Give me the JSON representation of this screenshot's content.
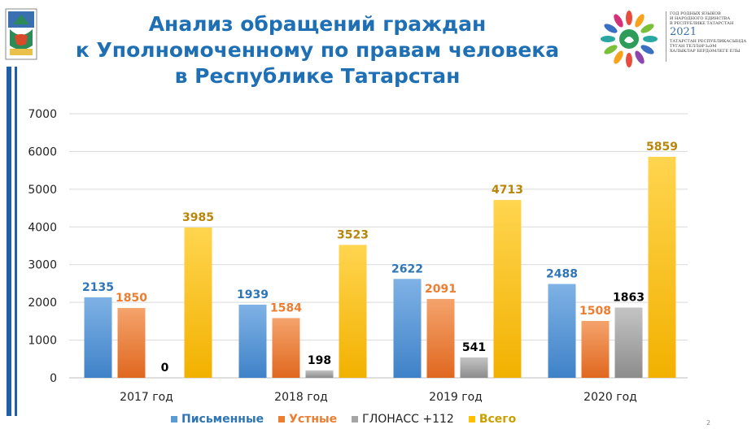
{
  "slide": {
    "title_lines": [
      "Анализ обращений граждан",
      "к Уполномоченному по правам человека",
      "в Республике Татарстан"
    ],
    "page_number": "2",
    "logo_lines": [
      "ГОД РОДНЫХ ЯЗЫКОВ",
      "И НАРОДНОГО ЕДИНСТВА",
      "В РЕСПУБЛИКЕ ТАТАРСТАН",
      "2021",
      "ТАТАРСТАН РЕСПУБЛИКАСЫНДА",
      "ТУГАН ТЕЛЛӘР ҺӘМ",
      "ХАЛЫКЛАР БЕРДӘМЛЕГЕ ЕЛЫ"
    ]
  },
  "chart_data": {
    "type": "bar",
    "title": "Анализ обращений граждан к Уполномоченному по правам человека в Республике Татарстан",
    "categories": [
      "2017 год",
      "2018 год",
      "2019 год",
      "2020 год"
    ],
    "series": [
      {
        "name": "Письменные",
        "color": "#5b9bd5",
        "label_color": "#2e75b6",
        "values": [
          2135,
          1939,
          2622,
          2488
        ]
      },
      {
        "name": "Устные",
        "color": "#ed7d31",
        "label_color": "#ed7d31",
        "values": [
          1850,
          1584,
          2091,
          1508
        ]
      },
      {
        "name": "ГЛОНАСС +112",
        "color": "#a5a5a5",
        "label_color": "#000000",
        "values": [
          0,
          198,
          541,
          1863
        ]
      },
      {
        "name": "Всего",
        "color": "#ffc000",
        "label_color": "#b8860b",
        "values": [
          3985,
          3523,
          4713,
          5859
        ]
      }
    ],
    "yticks": [
      0,
      1000,
      2000,
      3000,
      4000,
      5000,
      6000,
      7000
    ],
    "ylim": [
      0,
      7000
    ],
    "grid": true,
    "legend_position": "bottom",
    "xlabel": "",
    "ylabel": ""
  }
}
